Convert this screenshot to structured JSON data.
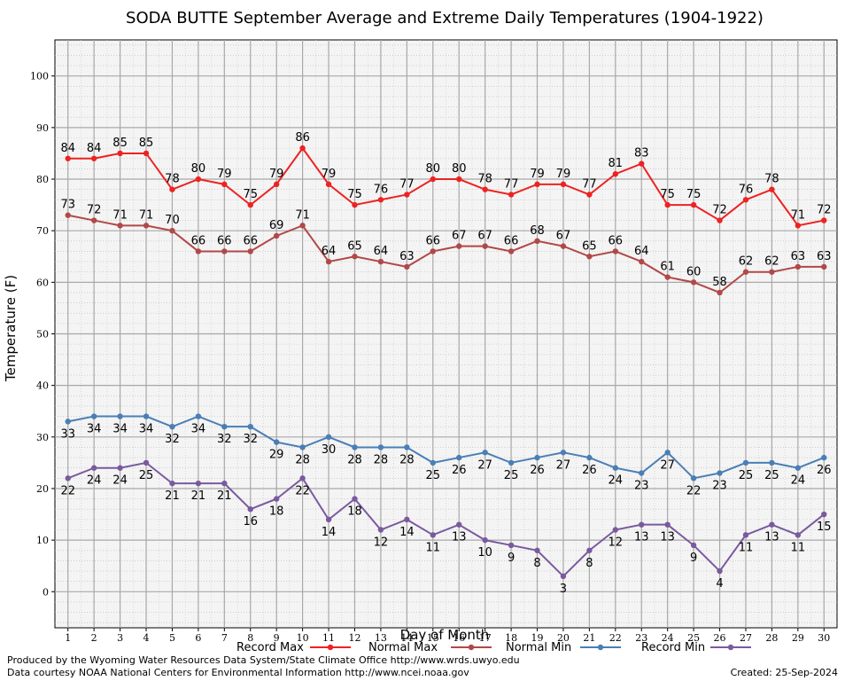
{
  "chart_data": {
    "type": "line",
    "title": "SODA BUTTE September Average and Extreme Daily Temperatures (1904-1922)",
    "xlabel": "Day of Month",
    "ylabel": "Temperature (F)",
    "x": [
      1,
      2,
      3,
      4,
      5,
      6,
      7,
      8,
      9,
      10,
      11,
      12,
      13,
      14,
      15,
      16,
      17,
      18,
      19,
      20,
      21,
      22,
      23,
      24,
      25,
      26,
      27,
      28,
      29,
      30
    ],
    "ylim": [
      -7,
      107
    ],
    "yticks": [
      0,
      10,
      20,
      30,
      40,
      50,
      60,
      70,
      80,
      90,
      100
    ],
    "grid": true,
    "legend_position": "bottom",
    "series": [
      {
        "name": "Record Max",
        "color": "#ee2222",
        "label_pos": "above",
        "values": [
          84,
          84,
          85,
          85,
          78,
          80,
          79,
          75,
          79,
          86,
          79,
          75,
          76,
          77,
          80,
          80,
          78,
          77,
          79,
          79,
          77,
          81,
          83,
          75,
          75,
          72,
          76,
          78,
          71,
          72
        ]
      },
      {
        "name": "Normal Max",
        "color": "#b24848",
        "label_pos": "above",
        "values": [
          73,
          72,
          71,
          71,
          70,
          66,
          66,
          66,
          69,
          71,
          64,
          65,
          64,
          63,
          66,
          67,
          67,
          66,
          68,
          67,
          65,
          66,
          64,
          61,
          60,
          58,
          62,
          62,
          63,
          63
        ]
      },
      {
        "name": "Normal Min",
        "color": "#4a7fb5",
        "label_pos": "below",
        "values": [
          33,
          34,
          34,
          34,
          32,
          34,
          32,
          32,
          29,
          28,
          30,
          28,
          28,
          28,
          25,
          26,
          27,
          25,
          26,
          27,
          26,
          24,
          23,
          27,
          22,
          23,
          25,
          25,
          24,
          26
        ]
      },
      {
        "name": "Record Min",
        "color": "#7a5a9e",
        "label_pos": "below",
        "values": [
          22,
          24,
          24,
          25,
          21,
          21,
          21,
          16,
          18,
          22,
          14,
          18,
          12,
          14,
          11,
          13,
          10,
          9,
          8,
          3,
          8,
          12,
          13,
          13,
          9,
          4,
          11,
          13,
          11,
          15
        ]
      }
    ]
  },
  "footer": {
    "produced_by": "Produced by the Wyoming Water Resources Data System/State Climate Office http://www.wrds.uwyo.edu",
    "courtesy": "Data courtesy NOAA National Centers for Environmental Information http://www.ncei.noaa.gov",
    "created": "Created:  25-Sep-2024"
  }
}
